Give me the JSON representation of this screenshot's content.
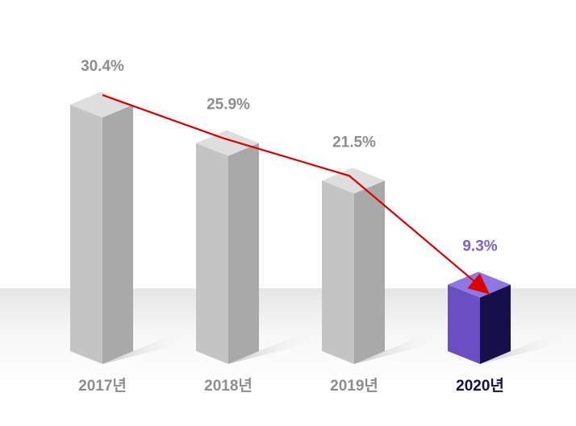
{
  "chart_data": {
    "type": "bar",
    "title": "",
    "xlabel": "",
    "ylabel": "",
    "ylim": [
      0,
      32
    ],
    "grid": false,
    "legend": "none",
    "categories": [
      "2017년",
      "2018년",
      "2019년",
      "2020년"
    ],
    "values": [
      30.4,
      25.9,
      21.5,
      9.3
    ],
    "value_labels": [
      "30.4%",
      "25.9%",
      "21.5%",
      "9.3%"
    ],
    "highlight_index": 3,
    "trend_arrow": true
  },
  "colors": {
    "bar_front": "#c4c4c4",
    "bar_side": "#a9a9a9",
    "bar_top": "#dedede",
    "highlight_front": "#6a4fc4",
    "highlight_side": "#15104a",
    "highlight_top": "#8e77e0",
    "label_normal": "#8e8e8e",
    "label_highlight": "#7a5fd6",
    "category_normal": "#8e8e8e",
    "category_highlight": "#15104a",
    "arrow": "#dd0000"
  }
}
